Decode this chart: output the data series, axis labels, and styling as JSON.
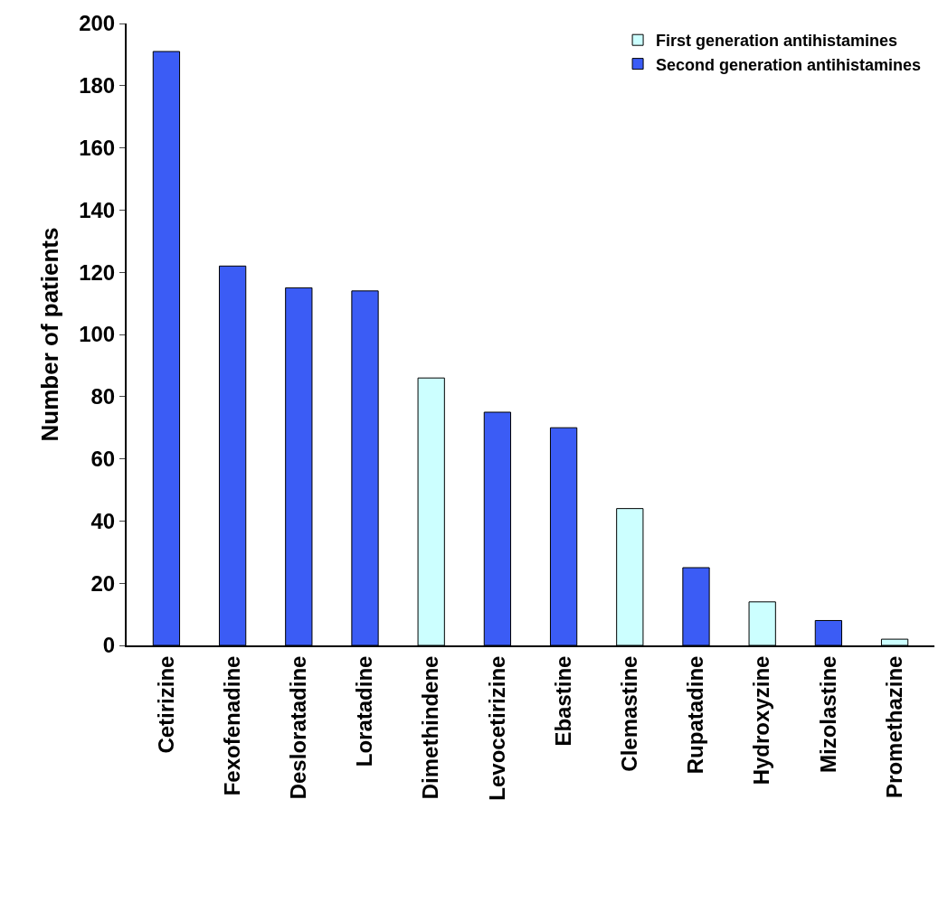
{
  "chart_data": {
    "type": "bar",
    "ylabel": "Number of patients",
    "categories": [
      "Cetirizine",
      "Fexofenadine",
      "Desloratadine",
      "Loratadine",
      "Dimethindene",
      "Levocetirizine",
      "Ebastine",
      "Clemastine",
      "Rupatadine",
      "Hydroxyzine",
      "Mizolastine",
      "Promethazine"
    ],
    "series": [
      {
        "name": "First generation antihistamines",
        "color": "#ccffff",
        "values": [
          null,
          null,
          null,
          null,
          86,
          null,
          null,
          44,
          null,
          14,
          null,
          2
        ]
      },
      {
        "name": "Second generation antihistamines",
        "color": "#3b5cf5",
        "values": [
          191,
          122,
          115,
          114,
          null,
          75,
          70,
          null,
          25,
          null,
          8,
          null
        ]
      }
    ],
    "ylim": [
      0,
      200
    ],
    "yticks": [
      0,
      20,
      40,
      60,
      80,
      100,
      120,
      140,
      160,
      180,
      200
    ],
    "legend": "top right"
  }
}
